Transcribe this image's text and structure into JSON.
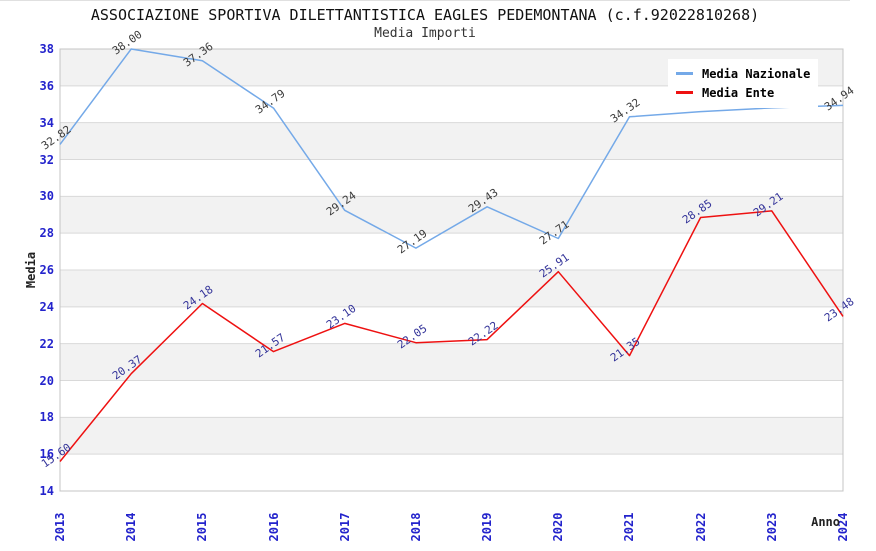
{
  "title": "ASSOCIAZIONE SPORTIVA DILETTANTISTICA EAGLES PEDEMONTANA (c.f.92022810268)",
  "subtitle": "Media Importi",
  "legend": {
    "items": [
      {
        "label": "Media Nazionale",
        "color": "#74a9e8"
      },
      {
        "label": "Media Ente",
        "color": "#ee1111"
      }
    ]
  },
  "chart_data": {
    "type": "line",
    "categories": [
      "2013",
      "2014",
      "2015",
      "2016",
      "2017",
      "2018",
      "2019",
      "2020",
      "2021",
      "2022",
      "2023",
      "2024"
    ],
    "series": [
      {
        "name": "Media Nazionale",
        "color": "#74a9e8",
        "label_color": "#3c3c3c",
        "values": [
          32.82,
          38.0,
          37.36,
          34.79,
          29.24,
          27.19,
          29.43,
          27.71,
          34.32,
          34.6,
          34.8,
          34.94
        ],
        "labels": [
          "32.82",
          "38.00",
          "37.36",
          "34.79",
          "29.24",
          "27.19",
          "29.43",
          "27.71",
          "34.32",
          "",
          "",
          "34.94"
        ]
      },
      {
        "name": "Media Ente",
        "color": "#ee1111",
        "label_color": "#333399",
        "values": [
          15.6,
          20.37,
          24.18,
          21.57,
          23.1,
          22.05,
          22.22,
          25.91,
          21.35,
          28.85,
          29.21,
          23.48
        ],
        "labels": [
          "15.60",
          "20.37",
          "24.18",
          "21.57",
          "23.10",
          "22.05",
          "22.22",
          "25.91",
          "21.35",
          "28.85",
          "29.21",
          "23.48"
        ]
      }
    ],
    "xlabel": "Anno",
    "ylabel": "Media",
    "ylim": [
      14,
      38
    ],
    "ytick_step": 2,
    "grid": "horizontal-bands",
    "legend_position": "top-right"
  },
  "colors": {
    "tick_label": "#2323cc",
    "band_gray": "#f2f2f2",
    "gridline": "#d9d9d9",
    "plot_border": "#c4c4c4",
    "background": "#ffffff"
  }
}
